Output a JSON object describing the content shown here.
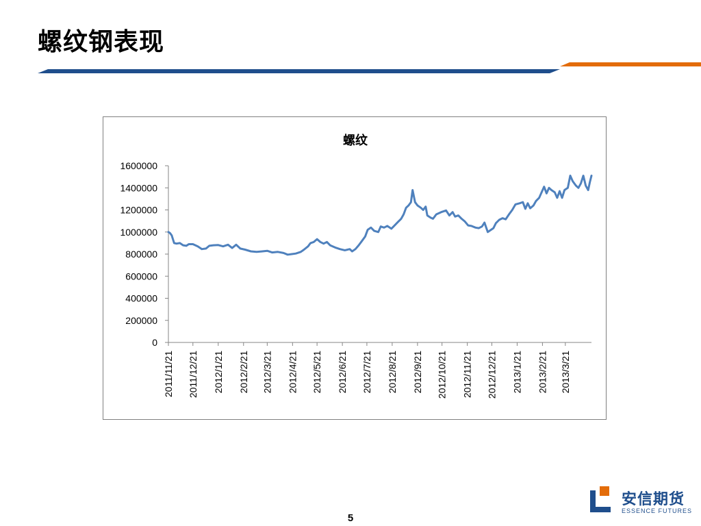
{
  "slide": {
    "title": "螺纹钢表现",
    "page_number": "5"
  },
  "logo": {
    "name": "安信期货",
    "subtitle": "ESSENCE FUTURES"
  },
  "colors": {
    "accent_blue": "#1f4e8c",
    "accent_orange": "#e36c0a",
    "series_line": "#4f81bd"
  },
  "chart_data": {
    "type": "line",
    "title": "螺纹",
    "xlabel": "",
    "ylabel": "",
    "ylim": [
      0,
      1600000
    ],
    "yticks": [
      "0",
      "200000",
      "400000",
      "600000",
      "800000",
      "1000000",
      "1200000",
      "1400000",
      "1600000"
    ],
    "xlim": [
      "2011-11-21",
      "2013-04-22"
    ],
    "xtick_labels": [
      "2011/11/21",
      "2011/12/21",
      "2012/1/21",
      "2012/2/21",
      "2012/3/21",
      "2012/4/21",
      "2012/5/21",
      "2012/6/21",
      "2012/7/21",
      "2012/8/21",
      "2012/9/21",
      "2012/10/21",
      "2012/11/21",
      "2012/12/21",
      "2013/1/21",
      "2013/2/21",
      "2013/3/21"
    ],
    "xtick_dates": [
      "2011-11-21",
      "2011-12-21",
      "2012-01-21",
      "2012-02-21",
      "2012-03-21",
      "2012-04-21",
      "2012-05-21",
      "2012-06-21",
      "2012-07-21",
      "2012-08-21",
      "2012-09-21",
      "2012-10-21",
      "2012-11-21",
      "2012-12-21",
      "2013-01-21",
      "2013-02-21",
      "2013-03-21"
    ],
    "grid": false,
    "legend": "none",
    "series": [
      {
        "points": [
          [
            "2011-11-21",
            1000000
          ],
          [
            "2011-11-23",
            990000
          ],
          [
            "2011-11-25",
            970000
          ],
          [
            "2011-11-28",
            900000
          ],
          [
            "2011-12-01",
            895000
          ],
          [
            "2011-12-05",
            900000
          ],
          [
            "2011-12-09",
            880000
          ],
          [
            "2011-12-13",
            875000
          ],
          [
            "2011-12-16",
            890000
          ],
          [
            "2011-12-21",
            890000
          ],
          [
            "2011-12-27",
            870000
          ],
          [
            "2012-01-01",
            845000
          ],
          [
            "2012-01-06",
            850000
          ],
          [
            "2012-01-10",
            875000
          ],
          [
            "2012-01-15",
            880000
          ],
          [
            "2012-01-21",
            882000
          ],
          [
            "2012-01-27",
            870000
          ],
          [
            "2012-02-02",
            885000
          ],
          [
            "2012-02-07",
            855000
          ],
          [
            "2012-02-12",
            885000
          ],
          [
            "2012-02-17",
            850000
          ],
          [
            "2012-02-23",
            840000
          ],
          [
            "2012-03-01",
            825000
          ],
          [
            "2012-03-08",
            820000
          ],
          [
            "2012-03-15",
            825000
          ],
          [
            "2012-03-21",
            830000
          ],
          [
            "2012-03-27",
            815000
          ],
          [
            "2012-04-03",
            820000
          ],
          [
            "2012-04-10",
            810000
          ],
          [
            "2012-04-15",
            795000
          ],
          [
            "2012-04-20",
            800000
          ],
          [
            "2012-04-25",
            805000
          ],
          [
            "2012-05-01",
            820000
          ],
          [
            "2012-05-05",
            840000
          ],
          [
            "2012-05-10",
            870000
          ],
          [
            "2012-05-13",
            900000
          ],
          [
            "2012-05-17",
            910000
          ],
          [
            "2012-05-21",
            935000
          ],
          [
            "2012-05-25",
            910000
          ],
          [
            "2012-05-29",
            895000
          ],
          [
            "2012-06-02",
            910000
          ],
          [
            "2012-06-06",
            880000
          ],
          [
            "2012-06-12",
            860000
          ],
          [
            "2012-06-18",
            845000
          ],
          [
            "2012-06-24",
            835000
          ],
          [
            "2012-06-30",
            845000
          ],
          [
            "2012-07-03",
            825000
          ],
          [
            "2012-07-07",
            845000
          ],
          [
            "2012-07-11",
            880000
          ],
          [
            "2012-07-15",
            920000
          ],
          [
            "2012-07-19",
            960000
          ],
          [
            "2012-07-22",
            1020000
          ],
          [
            "2012-07-26",
            1040000
          ],
          [
            "2012-07-30",
            1010000
          ],
          [
            "2012-08-04",
            1000000
          ],
          [
            "2012-08-07",
            1050000
          ],
          [
            "2012-08-11",
            1040000
          ],
          [
            "2012-08-15",
            1055000
          ],
          [
            "2012-08-20",
            1030000
          ],
          [
            "2012-08-24",
            1060000
          ],
          [
            "2012-08-28",
            1090000
          ],
          [
            "2012-09-01",
            1120000
          ],
          [
            "2012-09-04",
            1160000
          ],
          [
            "2012-09-07",
            1220000
          ],
          [
            "2012-09-10",
            1240000
          ],
          [
            "2012-09-13",
            1270000
          ],
          [
            "2012-09-15",
            1380000
          ],
          [
            "2012-09-18",
            1270000
          ],
          [
            "2012-09-21",
            1240000
          ],
          [
            "2012-09-25",
            1220000
          ],
          [
            "2012-09-28",
            1200000
          ],
          [
            "2012-10-01",
            1230000
          ],
          [
            "2012-10-03",
            1150000
          ],
          [
            "2012-10-07",
            1130000
          ],
          [
            "2012-10-10",
            1120000
          ],
          [
            "2012-10-14",
            1160000
          ],
          [
            "2012-10-20",
            1180000
          ],
          [
            "2012-10-26",
            1195000
          ],
          [
            "2012-10-30",
            1150000
          ],
          [
            "2012-11-03",
            1180000
          ],
          [
            "2012-11-06",
            1140000
          ],
          [
            "2012-11-10",
            1150000
          ],
          [
            "2012-11-14",
            1120000
          ],
          [
            "2012-11-18",
            1095000
          ],
          [
            "2012-11-22",
            1060000
          ],
          [
            "2012-11-26",
            1055000
          ],
          [
            "2012-12-01",
            1040000
          ],
          [
            "2012-12-05",
            1035000
          ],
          [
            "2012-12-09",
            1050000
          ],
          [
            "2012-12-12",
            1085000
          ],
          [
            "2012-12-16",
            1000000
          ],
          [
            "2012-12-20",
            1020000
          ],
          [
            "2012-12-23",
            1035000
          ],
          [
            "2012-12-26",
            1080000
          ],
          [
            "2012-12-30",
            1110000
          ],
          [
            "2013-01-03",
            1125000
          ],
          [
            "2013-01-07",
            1115000
          ],
          [
            "2013-01-11",
            1160000
          ],
          [
            "2013-01-15",
            1200000
          ],
          [
            "2013-01-19",
            1250000
          ],
          [
            "2013-01-24",
            1260000
          ],
          [
            "2013-01-28",
            1270000
          ],
          [
            "2013-01-31",
            1210000
          ],
          [
            "2013-02-03",
            1260000
          ],
          [
            "2013-02-06",
            1215000
          ],
          [
            "2013-02-10",
            1240000
          ],
          [
            "2013-02-13",
            1280000
          ],
          [
            "2013-02-17",
            1310000
          ],
          [
            "2013-02-20",
            1360000
          ],
          [
            "2013-02-23",
            1410000
          ],
          [
            "2013-02-26",
            1350000
          ],
          [
            "2013-03-01",
            1400000
          ],
          [
            "2013-03-04",
            1380000
          ],
          [
            "2013-03-08",
            1360000
          ],
          [
            "2013-03-11",
            1310000
          ],
          [
            "2013-03-14",
            1370000
          ],
          [
            "2013-03-17",
            1310000
          ],
          [
            "2013-03-20",
            1380000
          ],
          [
            "2013-03-24",
            1400000
          ],
          [
            "2013-03-27",
            1510000
          ],
          [
            "2013-03-30",
            1460000
          ],
          [
            "2013-04-03",
            1420000
          ],
          [
            "2013-04-06",
            1400000
          ],
          [
            "2013-04-09",
            1440000
          ],
          [
            "2013-04-12",
            1510000
          ],
          [
            "2013-04-15",
            1420000
          ],
          [
            "2013-04-18",
            1380000
          ],
          [
            "2013-04-20",
            1450000
          ],
          [
            "2013-04-22",
            1510000
          ]
        ]
      }
    ]
  }
}
